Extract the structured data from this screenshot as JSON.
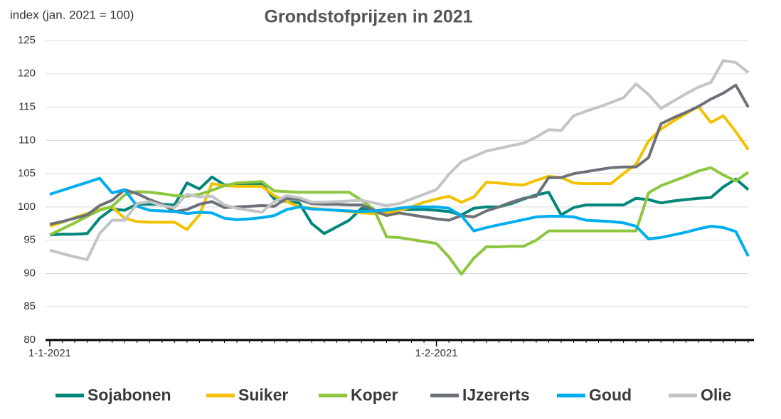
{
  "chart_data": {
    "type": "line",
    "title": "Grondstofprijzen in 2021",
    "y_label": "index (jan. 2021 = 100)",
    "categories": [
      "1-1-2021",
      null,
      null,
      null,
      null,
      null,
      null,
      null,
      null,
      null,
      null,
      null,
      null,
      null,
      null,
      null,
      null,
      null,
      null,
      null,
      null,
      null,
      null,
      null,
      null,
      null,
      null,
      null,
      null,
      null,
      null,
      "1-2-2021",
      null,
      null,
      null,
      null,
      null,
      null,
      null,
      null,
      null,
      null,
      null,
      null,
      null,
      null,
      null,
      null,
      null,
      null,
      null,
      null,
      null,
      null,
      null,
      null,
      null
    ],
    "ylim": [
      80,
      125
    ],
    "yticks": [
      80,
      85,
      90,
      95,
      100,
      105,
      110,
      115,
      120,
      125
    ],
    "grid": true,
    "legend": "bottom",
    "series": [
      {
        "name": "Sojabonen",
        "color": "#00877a",
        "values": [
          95.8,
          95.9,
          95.9,
          96.0,
          98.3,
          99.7,
          99.5,
          100.4,
          100.4,
          100.4,
          100.3,
          103.6,
          102.7,
          104.5,
          103.3,
          103.3,
          103.4,
          103.5,
          101.2,
          100.8,
          100.6,
          97.5,
          96.0,
          97.0,
          98.0,
          99.8,
          99.4,
          99.6,
          99.6,
          99.6,
          99.6,
          99.5,
          99.3,
          98.8,
          99.8,
          100.0,
          100.0,
          100.5,
          101.2,
          101.8,
          102.2,
          98.8,
          99.9,
          100.3,
          100.3,
          100.3,
          100.3,
          101.3,
          101.1,
          100.6,
          100.9,
          101.1,
          101.3,
          101.4,
          103.0,
          104.2,
          102.6
        ]
      },
      {
        "name": "Suiker",
        "color": "#f2c200",
        "values": [
          97.1,
          97.7,
          98.4,
          99.0,
          99.6,
          100.0,
          98.3,
          97.8,
          97.7,
          97.7,
          97.7,
          96.6,
          98.8,
          103.5,
          103.2,
          103.1,
          103.1,
          103.1,
          101.7,
          100.8,
          100.0,
          99.8,
          99.6,
          99.5,
          99.3,
          99.1,
          99.0,
          99.1,
          99.5,
          100.0,
          100.7,
          101.2,
          101.6,
          100.7,
          101.5,
          103.7,
          103.6,
          103.4,
          103.3,
          104.0,
          104.6,
          104.4,
          103.6,
          103.5,
          103.5,
          103.5,
          105.0,
          106.4,
          109.9,
          111.7,
          112.9,
          114.0,
          115.1,
          112.7,
          113.7,
          111.3,
          108.6
        ]
      },
      {
        "name": "Koper",
        "color": "#8dc63f",
        "values": [
          95.8,
          96.7,
          97.6,
          98.6,
          99.5,
          100.1,
          101.8,
          102.3,
          102.2,
          102.0,
          101.7,
          101.6,
          101.9,
          102.5,
          103.2,
          103.6,
          103.7,
          103.8,
          102.4,
          102.3,
          102.2,
          102.2,
          102.2,
          102.2,
          102.2,
          101.0,
          99.6,
          95.5,
          95.4,
          95.1,
          94.8,
          94.5,
          92.5,
          89.9,
          92.3,
          94.0,
          94.0,
          94.1,
          94.1,
          95.0,
          96.4,
          96.4,
          96.4,
          96.4,
          96.4,
          96.4,
          96.4,
          96.4,
          102.1,
          103.2,
          103.9,
          104.6,
          105.4,
          105.9,
          104.8,
          103.9,
          105.2
        ]
      },
      {
        "name": "IJzererts",
        "color": "#6d7278",
        "values": [
          97.4,
          97.8,
          98.3,
          98.8,
          100.2,
          101.0,
          102.6,
          102.0,
          101.1,
          100.4,
          99.3,
          99.6,
          100.4,
          100.8,
          99.9,
          100.0,
          100.1,
          100.2,
          100.1,
          101.3,
          101.1,
          100.5,
          100.4,
          100.4,
          100.3,
          100.3,
          99.5,
          98.7,
          99.1,
          98.8,
          98.5,
          98.2,
          98.0,
          98.7,
          98.5,
          99.4,
          100.0,
          100.7,
          101.3,
          101.6,
          104.4,
          104.4,
          105.0,
          105.3,
          105.6,
          105.9,
          106.0,
          106.0,
          107.4,
          112.5,
          113.4,
          114.2,
          115.1,
          116.2,
          117.1,
          118.3,
          115.0
        ]
      },
      {
        "name": "Goud",
        "color": "#00aeef",
        "values": [
          101.9,
          102.5,
          103.1,
          103.7,
          104.3,
          102.1,
          102.6,
          100.1,
          99.5,
          99.4,
          99.3,
          99.0,
          99.2,
          99.1,
          98.3,
          98.1,
          98.2,
          98.4,
          98.7,
          99.6,
          100.0,
          99.7,
          99.6,
          99.5,
          99.4,
          99.3,
          99.4,
          99.5,
          99.8,
          100.0,
          100.0,
          100.0,
          99.8,
          98.7,
          96.4,
          96.9,
          97.3,
          97.7,
          98.1,
          98.5,
          98.6,
          98.6,
          98.5,
          98.0,
          97.9,
          97.8,
          97.6,
          97.1,
          95.2,
          95.4,
          95.8,
          96.2,
          96.7,
          97.1,
          96.9,
          96.3,
          92.6
        ]
      },
      {
        "name": "Olie",
        "color": "#c3c4c6",
        "values": [
          93.5,
          93.0,
          92.5,
          92.1,
          96.0,
          98.0,
          98.0,
          100.5,
          100.8,
          100.2,
          99.9,
          101.9,
          101.5,
          101.6,
          100.3,
          99.8,
          99.5,
          99.2,
          100.8,
          101.7,
          101.4,
          100.7,
          100.7,
          100.8,
          100.9,
          101.0,
          100.6,
          100.2,
          100.5,
          101.2,
          101.9,
          102.6,
          104.9,
          106.8,
          107.6,
          108.4,
          108.8,
          109.2,
          109.6,
          110.5,
          111.6,
          111.5,
          113.7,
          114.4,
          115.0,
          115.7,
          116.4,
          118.5,
          116.9,
          114.8,
          115.9,
          117.0,
          118.0,
          118.7,
          122.0,
          121.7,
          120.2
        ]
      }
    ]
  }
}
